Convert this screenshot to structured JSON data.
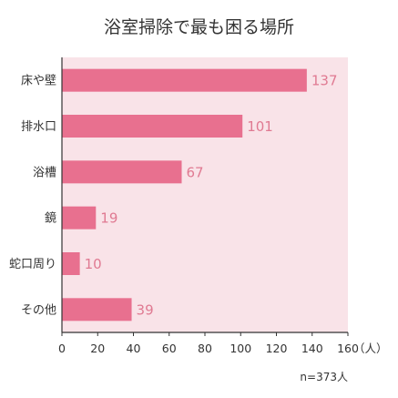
{
  "chart_data": {
    "type": "bar",
    "orientation": "horizontal",
    "title": "浴室掃除で最も困る場所",
    "categories": [
      "床や壁",
      "排水口",
      "浴槽",
      "鏡",
      "蛇口周り",
      "その他"
    ],
    "values": [
      137,
      101,
      67,
      19,
      10,
      39
    ],
    "xlim": [
      0,
      160
    ],
    "xticks": [
      "0",
      "20",
      "40",
      "60",
      "80",
      "100",
      "120",
      "140",
      "160"
    ],
    "unit_label": "（人）",
    "note": "n=373人",
    "grid": false,
    "colors": {
      "bar": "#e8708f",
      "value_label": "#e07a92",
      "plot_background": "#f9e3e8",
      "axis": "#333333"
    }
  }
}
